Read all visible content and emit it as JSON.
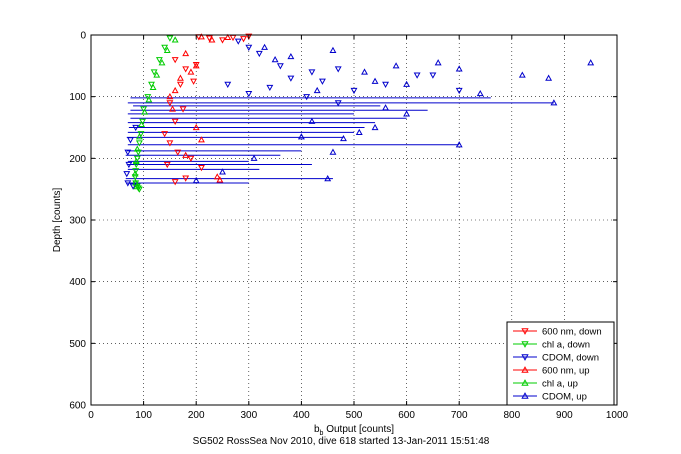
{
  "chart_data": {
    "type": "scatter",
    "xlabel_main": "b",
    "xlabel_sub": "b",
    "xlabel_rest": " Output [counts]",
    "ylabel": "Depth [counts]",
    "footer": "SG502 RossSea Nov 2010, dive 618 started 13-Jan-2011 15:51:48",
    "xlim": [
      0,
      1000
    ],
    "ylim": [
      0,
      600
    ],
    "y_reversed": true,
    "grid": true,
    "xticks": [
      0,
      100,
      200,
      300,
      400,
      500,
      600,
      700,
      800,
      900,
      1000
    ],
    "yticks": [
      0,
      100,
      200,
      300,
      400,
      500,
      600
    ],
    "legend_position": "bottom-right",
    "series": [
      {
        "name": "600 nm, down",
        "color": "#ff0000",
        "marker": "triangle-down",
        "x": [
          205,
          225,
          250,
          270,
          290,
          300,
          160,
          180,
          200,
          170,
          195,
          150,
          175,
          160,
          140,
          150,
          165,
          190,
          145,
          210,
          180,
          160
        ],
        "y": [
          3,
          5,
          8,
          4,
          6,
          2,
          40,
          55,
          48,
          80,
          75,
          110,
          120,
          140,
          160,
          175,
          190,
          200,
          210,
          215,
          232,
          238
        ]
      },
      {
        "name": "chl a, down",
        "color": "#00cc00",
        "marker": "triangle-down",
        "x": [
          150,
          140,
          130,
          120,
          115,
          108,
          100,
          98,
          95,
          92,
          90,
          88,
          86,
          85,
          84,
          85,
          88,
          90,
          92
        ],
        "y": [
          5,
          20,
          40,
          60,
          80,
          100,
          120,
          140,
          160,
          175,
          190,
          200,
          210,
          220,
          230,
          240,
          245,
          248,
          250
        ]
      },
      {
        "name": "CDOM, down",
        "color": "#0000cc",
        "marker": "triangle-down",
        "x": [
          280,
          300,
          320,
          360,
          420,
          470,
          650,
          260,
          340,
          380,
          440,
          500,
          560,
          620,
          700,
          300,
          410,
          470,
          85,
          75,
          70,
          72,
          68,
          70,
          80
        ],
        "y": [
          10,
          20,
          30,
          50,
          60,
          55,
          65,
          80,
          85,
          70,
          75,
          90,
          80,
          65,
          90,
          95,
          100,
          110,
          150,
          170,
          190,
          210,
          225,
          240,
          245
        ]
      },
      {
        "name": "600 nm, up",
        "color": "#ff0000",
        "marker": "triangle-up",
        "x": [
          210,
          230,
          260,
          180,
          200,
          170,
          190,
          160,
          150,
          155,
          200,
          210,
          180,
          240,
          245
        ],
        "y": [
          3,
          8,
          4,
          30,
          50,
          70,
          60,
          90,
          100,
          120,
          150,
          170,
          195,
          230,
          235
        ]
      },
      {
        "name": "chl a, up",
        "color": "#00cc00",
        "marker": "triangle-up",
        "x": [
          160,
          145,
          135,
          125,
          118,
          110,
          102,
          96,
          92,
          88,
          86,
          84,
          85,
          87
        ],
        "y": [
          8,
          25,
          45,
          65,
          85,
          105,
          125,
          145,
          165,
          185,
          205,
          225,
          240,
          246
        ]
      },
      {
        "name": "CDOM, up",
        "color": "#0000cc",
        "marker": "triangle-up",
        "x": [
          330,
          350,
          460,
          520,
          580,
          660,
          700,
          820,
          870,
          950,
          380,
          430,
          540,
          600,
          740,
          880,
          700,
          600,
          560,
          540,
          510,
          480,
          460,
          450,
          420,
          400,
          310,
          250,
          200
        ],
        "y": [
          20,
          40,
          25,
          60,
          50,
          45,
          55,
          65,
          70,
          45,
          35,
          90,
          75,
          80,
          95,
          110,
          178,
          128,
          118,
          150,
          158,
          168,
          190,
          233,
          140,
          165,
          200,
          222,
          236
        ]
      }
    ],
    "profile_lines": [
      {
        "x": [
          70,
          880
        ],
        "y": [
          110,
          110
        ]
      },
      {
        "x": [
          75,
          760
        ],
        "y": [
          102,
          102
        ]
      },
      {
        "x": [
          80,
          550
        ],
        "y": [
          115,
          115
        ]
      },
      {
        "x": [
          75,
          640
        ],
        "y": [
          122,
          122
        ]
      },
      {
        "x": [
          70,
          500
        ],
        "y": [
          128,
          128
        ]
      },
      {
        "x": [
          75,
          600
        ],
        "y": [
          135,
          135
        ]
      },
      {
        "x": [
          70,
          540
        ],
        "y": [
          142,
          142
        ]
      },
      {
        "x": [
          72,
          520
        ],
        "y": [
          150,
          150
        ]
      },
      {
        "x": [
          70,
          500
        ],
        "y": [
          158,
          158
        ]
      },
      {
        "x": [
          68,
          480
        ],
        "y": [
          166,
          166
        ]
      },
      {
        "x": [
          70,
          700
        ],
        "y": [
          178,
          178
        ]
      },
      {
        "x": [
          68,
          400
        ],
        "y": [
          188,
          188
        ]
      },
      {
        "x": [
          66,
          360
        ],
        "y": [
          195,
          195
        ]
      },
      {
        "x": [
          70,
          300
        ],
        "y": [
          205,
          205
        ]
      },
      {
        "x": [
          68,
          420
        ],
        "y": [
          210,
          210
        ]
      },
      {
        "x": [
          70,
          320
        ],
        "y": [
          218,
          218
        ]
      },
      {
        "x": [
          66,
          460
        ],
        "y": [
          233,
          233
        ]
      },
      {
        "x": [
          68,
          300
        ],
        "y": [
          240,
          240
        ]
      }
    ]
  }
}
